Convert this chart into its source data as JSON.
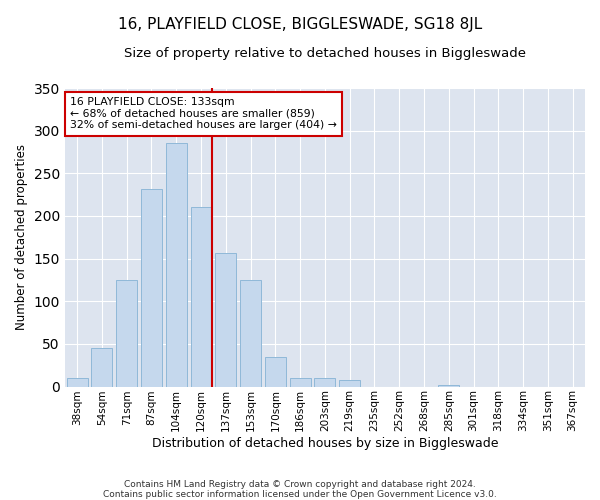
{
  "title": "16, PLAYFIELD CLOSE, BIGGLESWADE, SG18 8JL",
  "subtitle": "Size of property relative to detached houses in Biggleswade",
  "xlabel": "Distribution of detached houses by size in Biggleswade",
  "ylabel": "Number of detached properties",
  "footnote1": "Contains HM Land Registry data © Crown copyright and database right 2024.",
  "footnote2": "Contains public sector information licensed under the Open Government Licence v3.0.",
  "bin_labels": [
    "38sqm",
    "54sqm",
    "71sqm",
    "87sqm",
    "104sqm",
    "120sqm",
    "137sqm",
    "153sqm",
    "170sqm",
    "186sqm",
    "203sqm",
    "219sqm",
    "235sqm",
    "252sqm",
    "268sqm",
    "285sqm",
    "301sqm",
    "318sqm",
    "334sqm",
    "351sqm",
    "367sqm"
  ],
  "bar_values": [
    10,
    45,
    125,
    232,
    285,
    210,
    157,
    125,
    35,
    10,
    10,
    8,
    0,
    0,
    0,
    2,
    0,
    0,
    0,
    0,
    0
  ],
  "bar_color": "#c5d8ed",
  "bar_edge_color": "#8fb8d8",
  "property_bin_index": 5,
  "vline_color": "#cc0000",
  "annotation_text": "16 PLAYFIELD CLOSE: 133sqm\n← 68% of detached houses are smaller (859)\n32% of semi-detached houses are larger (404) →",
  "annotation_box_edge": "#cc0000",
  "annotation_box_face": "white",
  "ylim": [
    0,
    350
  ],
  "background_color": "#dde4ef",
  "grid_color": "white",
  "title_fontsize": 11,
  "subtitle_fontsize": 9.5,
  "tick_fontsize": 7.5,
  "ylabel_fontsize": 8.5,
  "xlabel_fontsize": 9,
  "footnote_fontsize": 6.5
}
